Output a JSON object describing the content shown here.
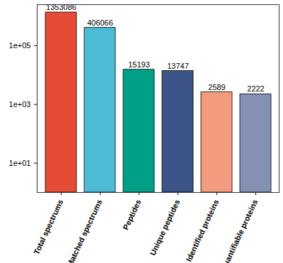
{
  "chart_data": {
    "type": "bar",
    "categories": [
      "Total spectrums",
      "Matched spectrums",
      "Peptides",
      "Unique peptides",
      "Identified proteins",
      "Quantifiable proteins"
    ],
    "values": [
      1353086,
      406066,
      15193,
      13747,
      2589,
      2222
    ],
    "colors": [
      "#E64B35",
      "#4DBBD5",
      "#00A087",
      "#3C5488",
      "#F39B7F",
      "#8491B4"
    ],
    "log": "y",
    "ylim": [
      1,
      2500000
    ],
    "yticks": [
      {
        "value": 10,
        "label": "1e+01"
      },
      {
        "value": 1000,
        "label": "1e+03"
      },
      {
        "value": 100000,
        "label": "1e+05"
      }
    ],
    "grid": false,
    "data_labels": true
  }
}
